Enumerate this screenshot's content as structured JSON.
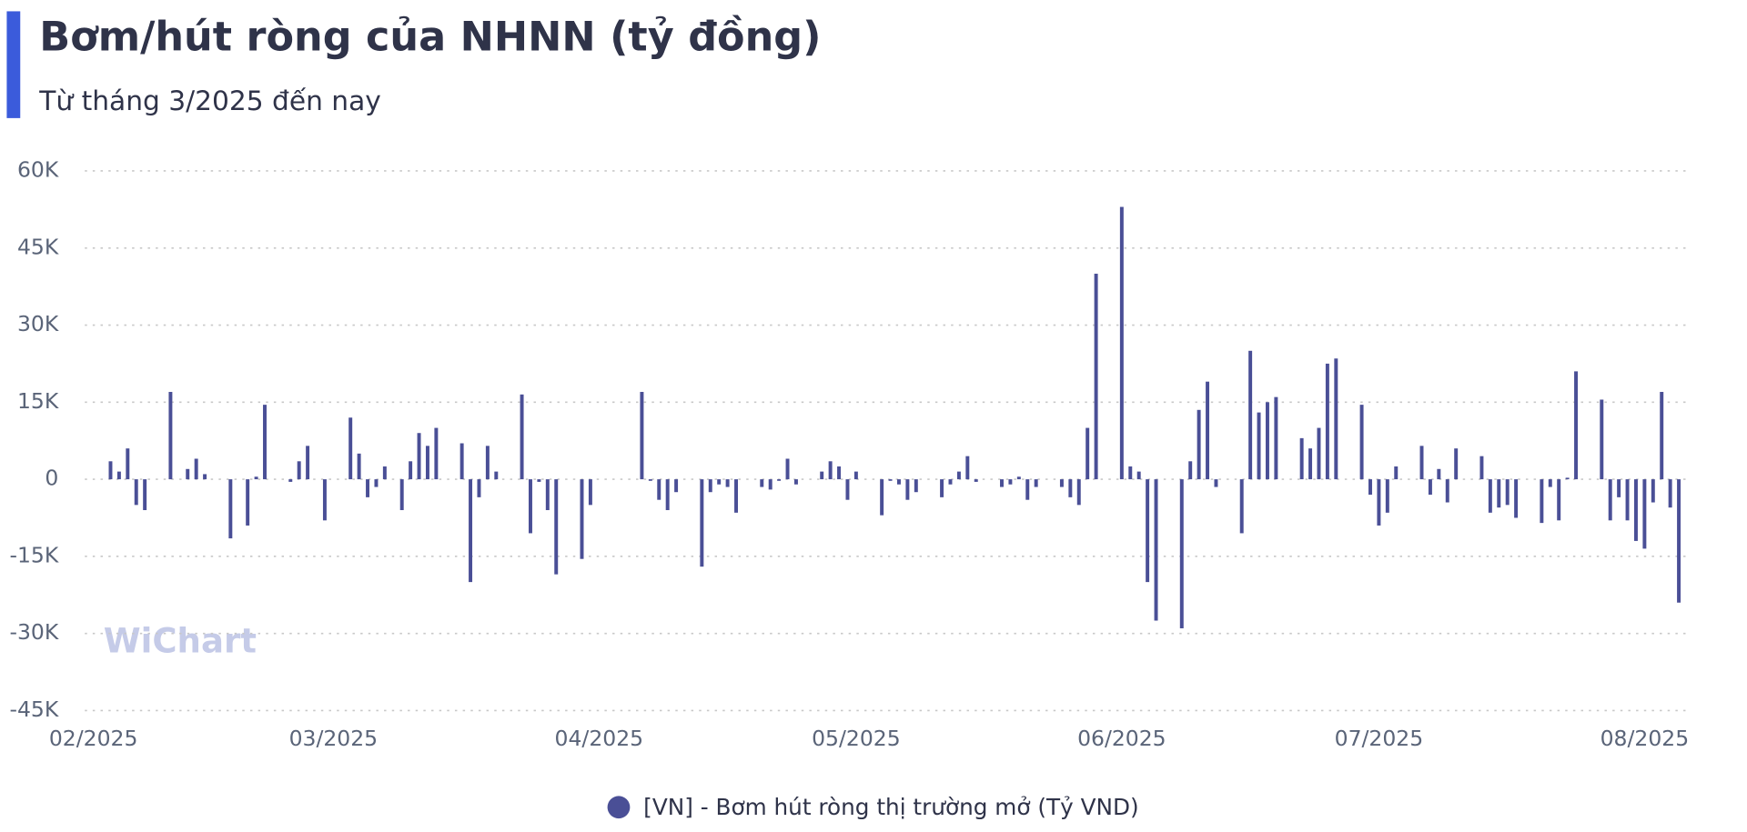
{
  "chart_data": {
    "type": "bar",
    "title": "Bơm/hút ròng của NHNN (tỷ đồng)",
    "subtitle": "Từ tháng 3/2025 đến nay",
    "watermark": "WiChart",
    "color": "#4a4f96",
    "grid": true,
    "legend": "bottom",
    "xlim": [
      -1,
      186
    ],
    "xticks": [
      {
        "value": 0,
        "label": "02/2025"
      },
      {
        "value": 28,
        "label": "03/2025"
      },
      {
        "value": 59,
        "label": "04/2025"
      },
      {
        "value": 89,
        "label": "05/2025"
      },
      {
        "value": 120,
        "label": "06/2025"
      },
      {
        "value": 150,
        "label": "07/2025"
      },
      {
        "value": 181,
        "label": "08/2025"
      }
    ],
    "ylim": [
      -45000,
      60000
    ],
    "yticks": [
      {
        "value": -45000,
        "label": "-45K"
      },
      {
        "value": -30000,
        "label": "-30K"
      },
      {
        "value": -15000,
        "label": "-15K"
      },
      0,
      {
        "value": 15000,
        "label": "15K"
      },
      {
        "value": 30000,
        "label": "30K"
      },
      {
        "value": 45000,
        "label": "45K"
      },
      {
        "value": 60000,
        "label": "60K"
      }
    ],
    "series": [
      {
        "name": "[VN] - Bơm hút ròng thị trường mở (Tỷ VND)",
        "color": "#4a4f96",
        "x": [
          2,
          3,
          4,
          5,
          6,
          9,
          11,
          12,
          13,
          16,
          18,
          19,
          20,
          23,
          24,
          25,
          27,
          30,
          31,
          32,
          33,
          34,
          36,
          37,
          38,
          39,
          40,
          43,
          44,
          45,
          46,
          47,
          50,
          51,
          52,
          53,
          54,
          57,
          58,
          64,
          65,
          66,
          67,
          68,
          71,
          72,
          73,
          74,
          75,
          78,
          79,
          80,
          81,
          82,
          85,
          86,
          87,
          88,
          89,
          92,
          93,
          94,
          95,
          96,
          99,
          100,
          101,
          102,
          103,
          106,
          107,
          108,
          109,
          110,
          113,
          114,
          115,
          116,
          117,
          120,
          121,
          122,
          123,
          124,
          127,
          128,
          129,
          130,
          131,
          134,
          135,
          136,
          137,
          138,
          141,
          142,
          143,
          144,
          145,
          148,
          149,
          150,
          151,
          152,
          155,
          156,
          157,
          158,
          159,
          162,
          163,
          164,
          165,
          166,
          169,
          170,
          171,
          172,
          173,
          176,
          177,
          178,
          179,
          180,
          181,
          182,
          183,
          184,
          185
        ],
        "values": [
          3500,
          1500,
          6000,
          -5000,
          -6000,
          17000,
          2000,
          4000,
          1000,
          -11500,
          -9000,
          500,
          14500,
          -500,
          3500,
          6500,
          -8000,
          12000,
          5000,
          -3500,
          -1500,
          2500,
          -6000,
          3500,
          9000,
          6500,
          10000,
          7000,
          -20000,
          -3500,
          6500,
          1500,
          16500,
          -10500,
          -500,
          -6000,
          -18500,
          -15500,
          -5000,
          17000,
          -300,
          -4000,
          -6000,
          -2500,
          -17000,
          -2500,
          -1000,
          -1500,
          -6500,
          -1500,
          -2000,
          -300,
          4000,
          -1000,
          1500,
          3500,
          2500,
          -4000,
          1500,
          -7000,
          -300,
          -1000,
          -4000,
          -2500,
          -3500,
          -1000,
          1500,
          4500,
          -500,
          -1500,
          -1000,
          500,
          -4000,
          -1500,
          -1500,
          -3500,
          -5000,
          10000,
          40000,
          53000,
          2500,
          1500,
          -20000,
          -27500,
          -29000,
          3500,
          13500,
          19000,
          -1500,
          -10500,
          25000,
          13000,
          15000,
          16000,
          8000,
          6000,
          10000,
          22500,
          23500,
          14500,
          -3000,
          -9000,
          -6500,
          2500,
          6500,
          -3000,
          2000,
          -4500,
          6000,
          4500,
          -6500,
          -5500,
          -5000,
          -7500,
          -8500,
          -1500,
          -8000,
          300,
          21000,
          15500,
          -8000,
          -3500,
          -8000,
          -12000,
          -13500,
          -4500,
          17000,
          -5500,
          -24000
        ]
      }
    ]
  }
}
